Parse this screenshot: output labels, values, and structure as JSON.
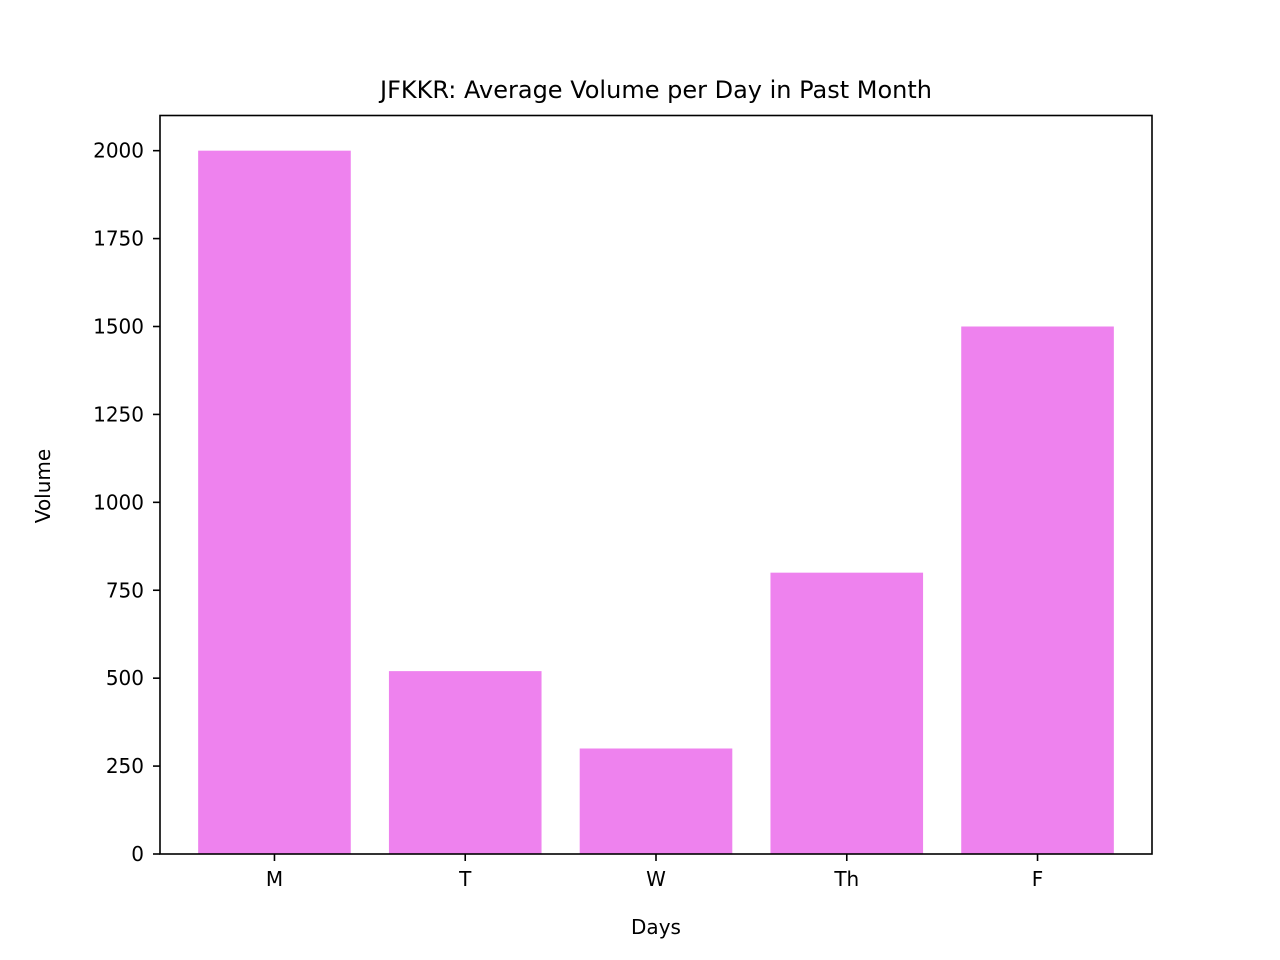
{
  "chart_data": {
    "type": "bar",
    "title": "JFKKR: Average Volume per Day in Past Month",
    "xlabel": "Days",
    "ylabel": "Volume",
    "categories": [
      "M",
      "T",
      "W",
      "Th",
      "F"
    ],
    "values": [
      2000,
      520,
      300,
      800,
      1500
    ],
    "ylim": [
      0,
      2100
    ],
    "yticks": [
      0,
      250,
      500,
      750,
      1000,
      1250,
      1500,
      1750,
      2000
    ],
    "bar_color": "#EE82EE",
    "grid": false,
    "legend": "none"
  }
}
